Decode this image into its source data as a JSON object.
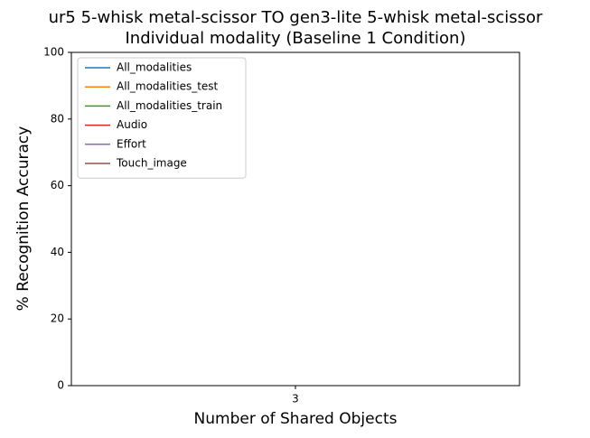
{
  "chart_data": {
    "type": "line",
    "title": "ur5 5-whisk metal-scissor TO gen3-lite 5-whisk metal-scissor",
    "subtitle": "Individual modality (Baseline 1 Condition)",
    "x_label": "Number of Shared Objects",
    "y_label": "% Recognition Accuracy",
    "categories": [
      "3"
    ],
    "series": [
      {
        "name": "All_modalities",
        "color": "#1f77b4",
        "values": [
          null
        ]
      },
      {
        "name": "All_modalities_test",
        "color": "#ff7f0e",
        "values": [
          null
        ]
      },
      {
        "name": "All_modalities_train",
        "color": "#2ca02c",
        "values": [
          null
        ]
      },
      {
        "name": "Audio",
        "color": "#d62728",
        "values": [
          null
        ]
      },
      {
        "name": "Effort",
        "color": "#9467bd",
        "values": [
          null
        ]
      },
      {
        "name": "Touch_image",
        "color": "#8c564b",
        "values": [
          null
        ]
      }
    ],
    "ylim": [
      0,
      100
    ],
    "yticks": [
      0,
      20,
      40,
      60,
      80,
      100
    ],
    "legend": "upper left"
  }
}
